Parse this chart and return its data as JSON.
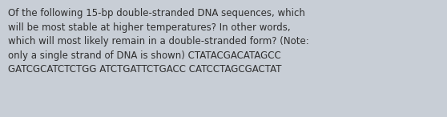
{
  "text": "Of the following 15-bp double-stranded DNA sequences, which\nwill be most stable at higher temperatures? In other words,\nwhich will most likely remain in a double-stranded form? (Note:\nonly a single strand of DNA is shown) CTATACGACATAGCC\nGATCGCATCTCTGG ATCTGATTCTGACC CATCCTAGCGACTAT",
  "background_color": "#c8ced6",
  "text_color": "#2e2e2e",
  "font_size": 8.5,
  "fig_width": 5.58,
  "fig_height": 1.46
}
